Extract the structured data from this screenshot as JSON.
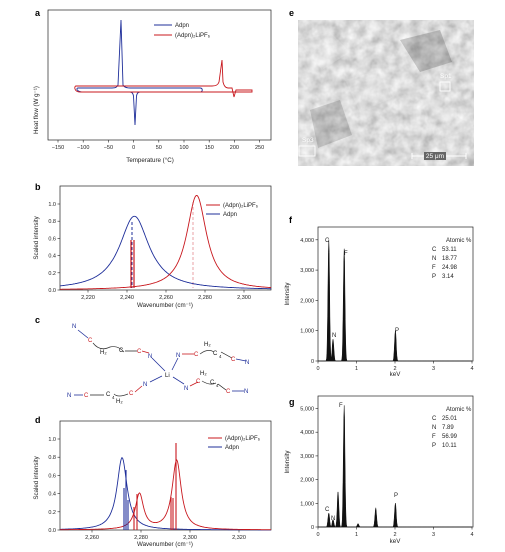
{
  "colors": {
    "red": "#c8181e",
    "blue": "#1f2f9a",
    "black": "#111111",
    "pink": "#e8a0a6",
    "gray": "#999999"
  },
  "panel_labels": {
    "a": "a",
    "b": "b",
    "c": "c",
    "d": "d",
    "e": "e",
    "f": "f",
    "g": "g"
  },
  "panel_a": {
    "ylabel": "Heat flow (W g⁻¹)",
    "xlabel": "Temperature (°C)",
    "legend": [
      "Adpn",
      "(Adpn)₂LiPF₆"
    ],
    "xticks": [
      "−150",
      "−100",
      "−50",
      "0",
      "50",
      "100",
      "150",
      "200",
      "250"
    ]
  },
  "panel_b": {
    "ylabel": "Scaled intensity",
    "xlabel": "Wavenumber (cm⁻¹)",
    "legend": [
      "(Adpn)₂LiPF₆",
      "Adpn"
    ],
    "xticks": [
      "2,220",
      "2,240",
      "2,260",
      "2,280",
      "2,300"
    ],
    "yticks": [
      "0.0",
      "0.2",
      "0.4",
      "0.6",
      "0.8",
      "1.0"
    ]
  },
  "panel_c": {
    "labels": {
      "n_cn": "N",
      "c_cn": "C",
      "h2": "H₂",
      "c": "C",
      "n": "N",
      "li": "Li",
      "c4": "4"
    }
  },
  "panel_d": {
    "ylabel": "Scaled intensity",
    "xlabel": "Wavenumber (cm⁻¹)",
    "legend": [
      "(Adpn)₂LiPF₆",
      "Adpn"
    ],
    "xticks": [
      "2,260",
      "2,280",
      "2,300",
      "2,320"
    ],
    "yticks": [
      "0.0",
      "0.2",
      "0.4",
      "0.6",
      "0.8",
      "1.0"
    ]
  },
  "panel_e": {
    "spots": [
      "Sp1",
      "Sp3"
    ],
    "scalebar": "25 μm"
  },
  "panel_f": {
    "ylabel": "Intensity",
    "xlabel": "keV",
    "yticks": [
      "0",
      "1,000",
      "2,000",
      "3,000",
      "4,000"
    ],
    "xticks": [
      "0",
      "1",
      "2",
      "3",
      "4"
    ],
    "peak_labels": [
      "C",
      "N",
      "F",
      "P"
    ],
    "atomic_header": "Atomic %",
    "atomic": [
      [
        "C",
        "53.11"
      ],
      [
        "N",
        "18.77"
      ],
      [
        "F",
        "24.98"
      ],
      [
        "P",
        "3.14"
      ]
    ]
  },
  "panel_g": {
    "ylabel": "Intensity",
    "xlabel": "keV",
    "yticks": [
      "0",
      "1,000",
      "2,000",
      "3,000",
      "4,000",
      "5,000"
    ],
    "xticks": [
      "0",
      "1",
      "2",
      "3",
      "4"
    ],
    "peak_labels": [
      "C",
      "N",
      "F",
      "P"
    ],
    "atomic_header": "Atomic %",
    "atomic": [
      [
        "C",
        "25.01"
      ],
      [
        "N",
        "7.89"
      ],
      [
        "F",
        "56.99"
      ],
      [
        "P",
        "10.11"
      ]
    ]
  },
  "chart_data": [
    {
      "panel": "a",
      "type": "line",
      "xlabel": "Temperature (°C)",
      "ylabel": "Heat flow (W g⁻¹)",
      "xlim": [
        -150,
        250
      ],
      "series": [
        {
          "name": "Adpn",
          "features": [
            {
              "kind": "endotherm-peak",
              "x": -23
            },
            {
              "kind": "exotherm-peak",
              "x": 2
            }
          ]
        },
        {
          "name": "(Adpn)₂LiPF₆",
          "features": [
            {
              "kind": "peak",
              "x": 165
            },
            {
              "kind": "dip",
              "x": 180
            }
          ]
        }
      ]
    },
    {
      "panel": "b",
      "type": "line",
      "xlabel": "Wavenumber (cm⁻¹)",
      "ylabel": "Scaled intensity",
      "xlim": [
        2205,
        2310
      ],
      "ylim": [
        0,
        1.1
      ],
      "series": [
        {
          "name": "(Adpn)₂LiPF₆",
          "peak_x": 2273,
          "peak_y": 1.0
        },
        {
          "name": "Adpn",
          "peak_x": 2242,
          "peak_y": 0.78
        }
      ]
    },
    {
      "panel": "d",
      "type": "line",
      "xlabel": "Wavenumber (cm⁻¹)",
      "ylabel": "Scaled intensity",
      "xlim": [
        2245,
        2330
      ],
      "ylim": [
        0,
        1.1
      ],
      "series": [
        {
          "name": "(Adpn)₂LiPF₆",
          "peaks": [
            [
              2277,
              0.36
            ],
            [
              2292,
              0.7
            ]
          ]
        },
        {
          "name": "Adpn",
          "peaks": [
            [
              2270,
              0.73
            ]
          ]
        }
      ]
    },
    {
      "panel": "f",
      "type": "area",
      "xlabel": "keV",
      "ylabel": "Intensity",
      "xlim": [
        0,
        4
      ],
      "ylim": [
        0,
        4300
      ],
      "peaks": [
        [
          0.28,
          3900
        ],
        [
          0.39,
          700
        ],
        [
          0.68,
          3600
        ],
        [
          2.01,
          980
        ]
      ]
    },
    {
      "panel": "g",
      "type": "area",
      "xlabel": "keV",
      "ylabel": "Intensity",
      "xlim": [
        0,
        4
      ],
      "ylim": [
        0,
        5600
      ],
      "peaks": [
        [
          0.28,
          600
        ],
        [
          0.39,
          320
        ],
        [
          0.52,
          1500
        ],
        [
          0.68,
          5200
        ],
        [
          1.04,
          150
        ],
        [
          1.5,
          820
        ],
        [
          2.01,
          1020
        ]
      ]
    }
  ]
}
